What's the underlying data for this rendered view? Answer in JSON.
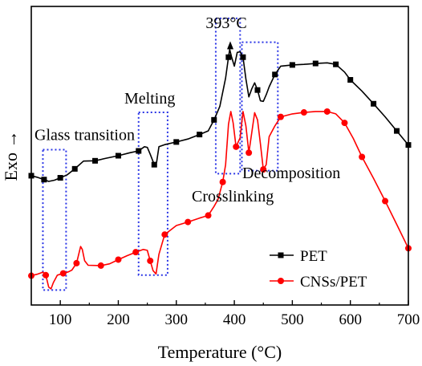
{
  "chart_data": {
    "type": "line",
    "title": "",
    "xlabel": "Temperature (°C)",
    "ylabel": "Exo →",
    "xlim": [
      50,
      700
    ],
    "ylim": [
      0,
      1
    ],
    "x_ticks": [
      100,
      200,
      300,
      400,
      500,
      600,
      700
    ],
    "y_ticks": [],
    "grid": false,
    "legend_position": "bottom-right",
    "series": [
      {
        "name": "PET",
        "color": "#000000",
        "marker": "square",
        "points": [
          [
            50,
            0.433
          ],
          [
            60,
            0.428
          ],
          [
            72,
            0.42
          ],
          [
            80,
            0.414
          ],
          [
            90,
            0.418
          ],
          [
            100,
            0.426
          ],
          [
            112,
            0.436
          ],
          [
            125,
            0.456
          ],
          [
            140,
            0.482
          ],
          [
            160,
            0.483
          ],
          [
            180,
            0.492
          ],
          [
            200,
            0.5
          ],
          [
            220,
            0.51
          ],
          [
            235,
            0.516
          ],
          [
            245,
            0.53
          ],
          [
            250,
            0.528
          ],
          [
            255,
            0.505
          ],
          [
            262,
            0.47
          ],
          [
            266,
            0.478
          ],
          [
            270,
            0.53
          ],
          [
            280,
            0.537
          ],
          [
            300,
            0.546
          ],
          [
            320,
            0.556
          ],
          [
            340,
            0.571
          ],
          [
            355,
            0.583
          ],
          [
            365,
            0.62
          ],
          [
            375,
            0.665
          ],
          [
            385,
            0.76
          ],
          [
            390,
            0.83
          ],
          [
            392,
            0.856
          ],
          [
            395,
            0.832
          ],
          [
            400,
            0.8
          ],
          [
            405,
            0.846
          ],
          [
            410,
            0.848
          ],
          [
            415,
            0.83
          ],
          [
            420,
            0.757
          ],
          [
            425,
            0.697
          ],
          [
            430,
            0.724
          ],
          [
            435,
            0.744
          ],
          [
            440,
            0.72
          ],
          [
            445,
            0.684
          ],
          [
            450,
            0.682
          ],
          [
            455,
            0.704
          ],
          [
            460,
            0.731
          ],
          [
            470,
            0.772
          ],
          [
            480,
            0.8
          ],
          [
            500,
            0.804
          ],
          [
            520,
            0.806
          ],
          [
            540,
            0.809
          ],
          [
            560,
            0.811
          ],
          [
            575,
            0.806
          ],
          [
            590,
            0.78
          ],
          [
            600,
            0.754
          ],
          [
            620,
            0.716
          ],
          [
            640,
            0.674
          ],
          [
            660,
            0.63
          ],
          [
            680,
            0.583
          ],
          [
            700,
            0.536
          ]
        ]
      },
      {
        "name": "CNSs/PET",
        "color": "#ff0000",
        "marker": "circle",
        "points": [
          [
            50,
            0.098
          ],
          [
            60,
            0.103
          ],
          [
            70,
            0.11
          ],
          [
            75,
            0.1
          ],
          [
            80,
            0.06
          ],
          [
            84,
            0.054
          ],
          [
            88,
            0.075
          ],
          [
            95,
            0.1
          ],
          [
            105,
            0.106
          ],
          [
            114,
            0.111
          ],
          [
            120,
            0.117
          ],
          [
            128,
            0.14
          ],
          [
            135,
            0.196
          ],
          [
            138,
            0.186
          ],
          [
            142,
            0.148
          ],
          [
            148,
            0.133
          ],
          [
            170,
            0.132
          ],
          [
            185,
            0.138
          ],
          [
            200,
            0.152
          ],
          [
            215,
            0.165
          ],
          [
            230,
            0.177
          ],
          [
            243,
            0.186
          ],
          [
            250,
            0.183
          ],
          [
            255,
            0.148
          ],
          [
            260,
            0.115
          ],
          [
            265,
            0.104
          ],
          [
            270,
            0.17
          ],
          [
            280,
            0.236
          ],
          [
            300,
            0.266
          ],
          [
            320,
            0.278
          ],
          [
            340,
            0.291
          ],
          [
            355,
            0.3
          ],
          [
            365,
            0.33
          ],
          [
            372,
            0.354
          ],
          [
            380,
            0.412
          ],
          [
            385,
            0.47
          ],
          [
            390,
            0.605
          ],
          [
            394,
            0.648
          ],
          [
            398,
            0.61
          ],
          [
            403,
            0.53
          ],
          [
            410,
            0.56
          ],
          [
            415,
            0.648
          ],
          [
            420,
            0.6
          ],
          [
            425,
            0.51
          ],
          [
            430,
            0.577
          ],
          [
            435,
            0.644
          ],
          [
            440,
            0.62
          ],
          [
            445,
            0.54
          ],
          [
            450,
            0.454
          ],
          [
            455,
            0.47
          ],
          [
            460,
            0.564
          ],
          [
            470,
            0.6
          ],
          [
            480,
            0.63
          ],
          [
            500,
            0.64
          ],
          [
            520,
            0.645
          ],
          [
            540,
            0.648
          ],
          [
            560,
            0.648
          ],
          [
            575,
            0.64
          ],
          [
            590,
            0.61
          ],
          [
            605,
            0.558
          ],
          [
            620,
            0.496
          ],
          [
            640,
            0.424
          ],
          [
            660,
            0.348
          ],
          [
            680,
            0.27
          ],
          [
            700,
            0.19
          ]
        ]
      }
    ],
    "annotations": [
      {
        "label": "Glass transition",
        "x_range": [
          70,
          110
        ],
        "y_range": [
          0.05,
          0.52
        ]
      },
      {
        "label": "Melting",
        "x_range": [
          235,
          285
        ],
        "y_range": [
          0.1,
          0.645
        ]
      },
      {
        "label": "Crosslinking",
        "x_range": [
          368,
          410
        ],
        "y_range": [
          0.44,
          0.96
        ]
      },
      {
        "label": "Decomposition",
        "x_range": [
          413,
          475
        ],
        "y_range": [
          0.45,
          0.88
        ]
      }
    ],
    "peak_label": {
      "text": "393°C",
      "x": 393,
      "y": 0.862
    }
  }
}
